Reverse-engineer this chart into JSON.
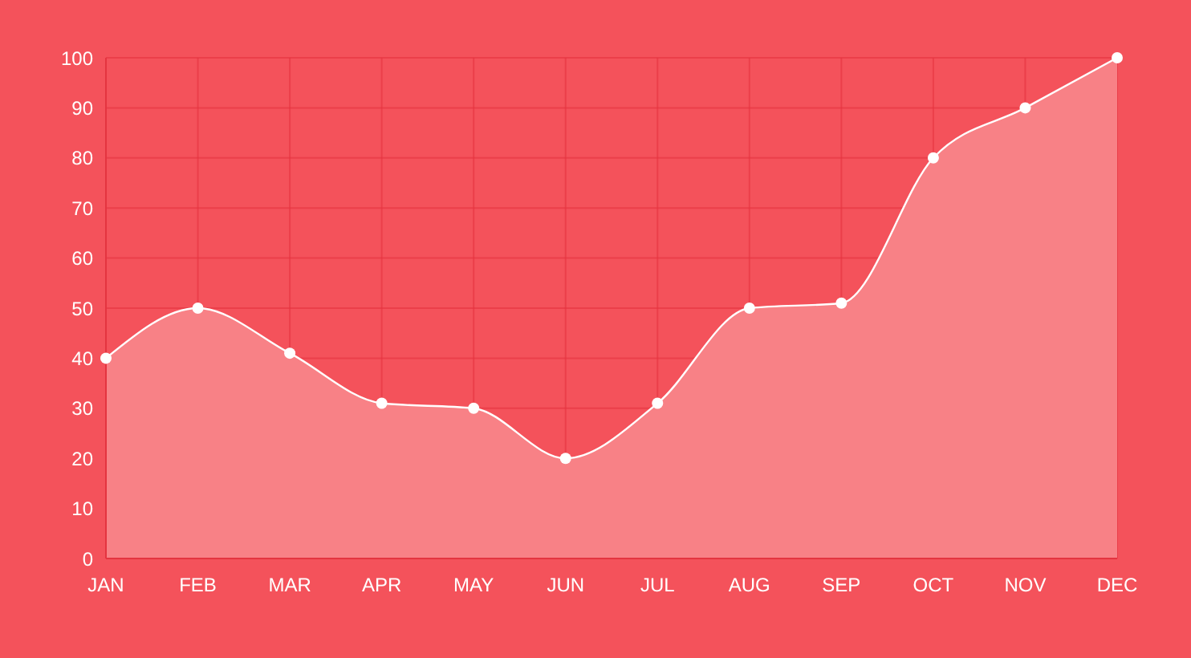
{
  "chart_data": {
    "type": "area",
    "categories": [
      "JAN",
      "FEB",
      "MAR",
      "APR",
      "MAY",
      "JUN",
      "JUL",
      "AUG",
      "SEP",
      "OCT",
      "NOV",
      "DEC"
    ],
    "series": [
      {
        "color": "#f88186",
        "values": [
          40,
          50,
          41,
          31,
          30,
          20,
          31,
          50,
          51,
          80,
          90,
          100
        ]
      }
    ],
    "ylim": [
      0,
      100
    ],
    "yticks": [
      0,
      10,
      20,
      30,
      40,
      50,
      60,
      70,
      80,
      90,
      100
    ],
    "grid": true,
    "marker": "circle"
  }
}
